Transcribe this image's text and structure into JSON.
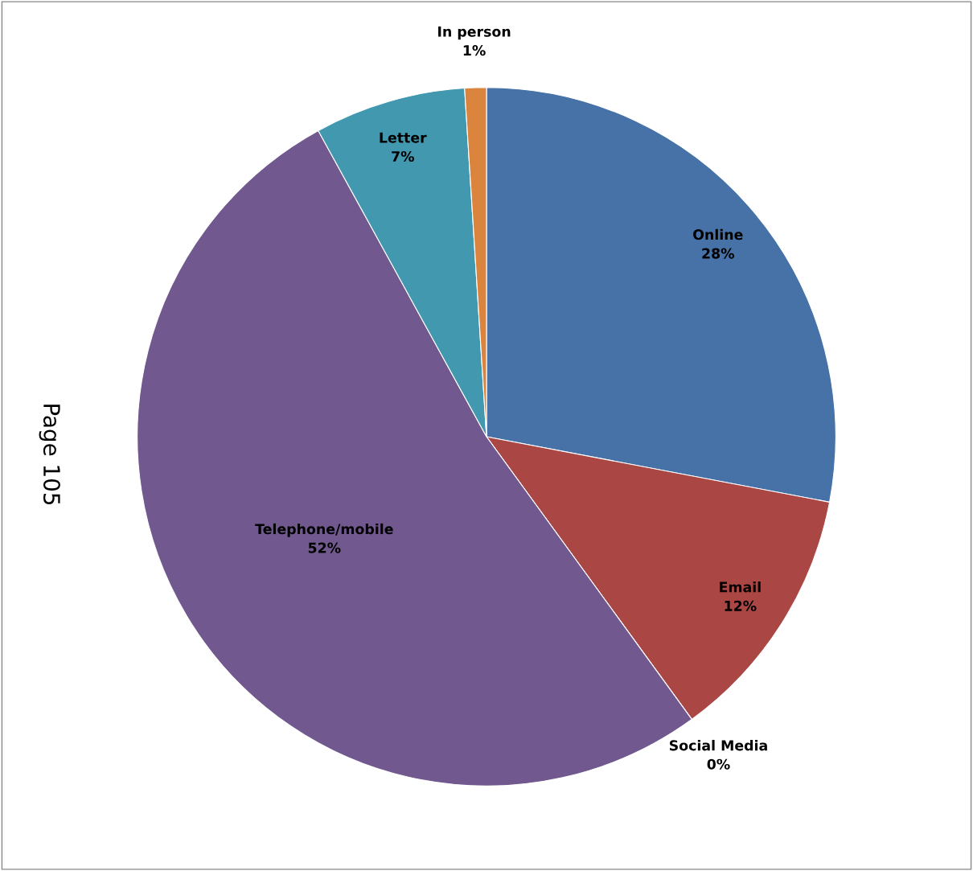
{
  "chart_data": {
    "type": "pie",
    "categories": [
      "Online",
      "Email",
      "Social Media",
      "Telephone/mobile",
      "Letter",
      "In person"
    ],
    "values": [
      28,
      12,
      0,
      52,
      7,
      1
    ],
    "colors": [
      "#4672a8",
      "#aa4644",
      "#89a54e",
      "#71588f",
      "#4298af",
      "#db843d"
    ],
    "value_labels": [
      "28%",
      "12%",
      "0%",
      "52%",
      "7%",
      "1%"
    ],
    "legend": false,
    "annotations": [
      "Page 105"
    ]
  }
}
